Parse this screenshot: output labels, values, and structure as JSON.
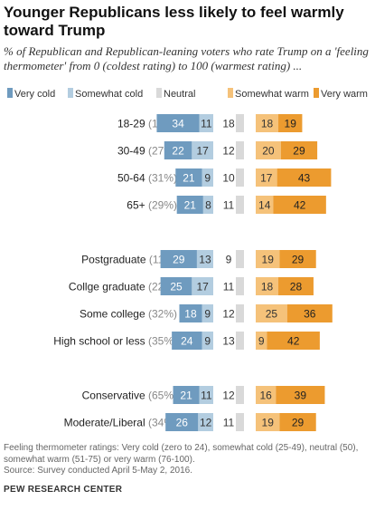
{
  "chart_data": {
    "type": "bar",
    "title": "Younger Republicans less likely to feel warmly toward Trump",
    "subtitle": "% of Republican and Republican-leaning voters who rate Trump on a 'feeling thermometer' from 0 (coldest rating) to 100 (warmest rating) ...",
    "legend_placement": "top",
    "grid": false,
    "series": [
      {
        "name": "Very cold",
        "color": "#6f9bbf"
      },
      {
        "name": "Somewhat cold",
        "color": "#b3cde0"
      },
      {
        "name": "Neutral",
        "color": "#d9d9d9"
      },
      {
        "name": "Somewhat warm",
        "color": "#f5c27a"
      },
      {
        "name": "Very warm",
        "color": "#ec9b2f"
      }
    ],
    "groups": [
      {
        "rows": [
          {
            "label": "18-29",
            "share": "(13%)",
            "very_cold": 34,
            "somewhat_cold": 11,
            "neutral": 18,
            "somewhat_warm": 18,
            "very_warm": 19
          },
          {
            "label": "30-49",
            "share": "(27%)",
            "very_cold": 22,
            "somewhat_cold": 17,
            "neutral": 12,
            "somewhat_warm": 20,
            "very_warm": 29
          },
          {
            "label": "50-64",
            "share": "(31%)",
            "very_cold": 21,
            "somewhat_cold": 9,
            "neutral": 10,
            "somewhat_warm": 17,
            "very_warm": 43
          },
          {
            "label": "65+",
            "share": "(29%)",
            "very_cold": 21,
            "somewhat_cold": 8,
            "neutral": 11,
            "somewhat_warm": 14,
            "very_warm": 42
          }
        ]
      },
      {
        "rows": [
          {
            "label": "Postgraduate",
            "share": "(11%)",
            "very_cold": 29,
            "somewhat_cold": 13,
            "neutral": 9,
            "somewhat_warm": 19,
            "very_warm": 29
          },
          {
            "label": "Collge graduate",
            "share": "(22%)",
            "very_cold": 25,
            "somewhat_cold": 17,
            "neutral": 11,
            "somewhat_warm": 18,
            "very_warm": 28
          },
          {
            "label": "Some college",
            "share": "(32%)",
            "very_cold": 18,
            "somewhat_cold": 9,
            "neutral": 12,
            "somewhat_warm": 25,
            "very_warm": 36
          },
          {
            "label": "High school or less",
            "share": "(35%)",
            "very_cold": 24,
            "somewhat_cold": 9,
            "neutral": 13,
            "somewhat_warm": 9,
            "very_warm": 42
          }
        ]
      },
      {
        "rows": [
          {
            "label": "Conservative",
            "share": "(65%)",
            "very_cold": 21,
            "somewhat_cold": 11,
            "neutral": 12,
            "somewhat_warm": 16,
            "very_warm": 39
          },
          {
            "label": "Moderate/Liberal",
            "share": "(34%)",
            "very_cold": 26,
            "somewhat_cold": 12,
            "neutral": 11,
            "somewhat_warm": 19,
            "very_warm": 29
          }
        ]
      }
    ]
  },
  "note": "Feeling thermometer ratings: Very cold (zero to 24), somewhat cold (25-49), neutral (50), somewhat warm (51-75) or very warm (76-100).",
  "source": "Source: Survey conducted April 5-May 2, 2016.",
  "brand": "PEW RESEARCH CENTER"
}
